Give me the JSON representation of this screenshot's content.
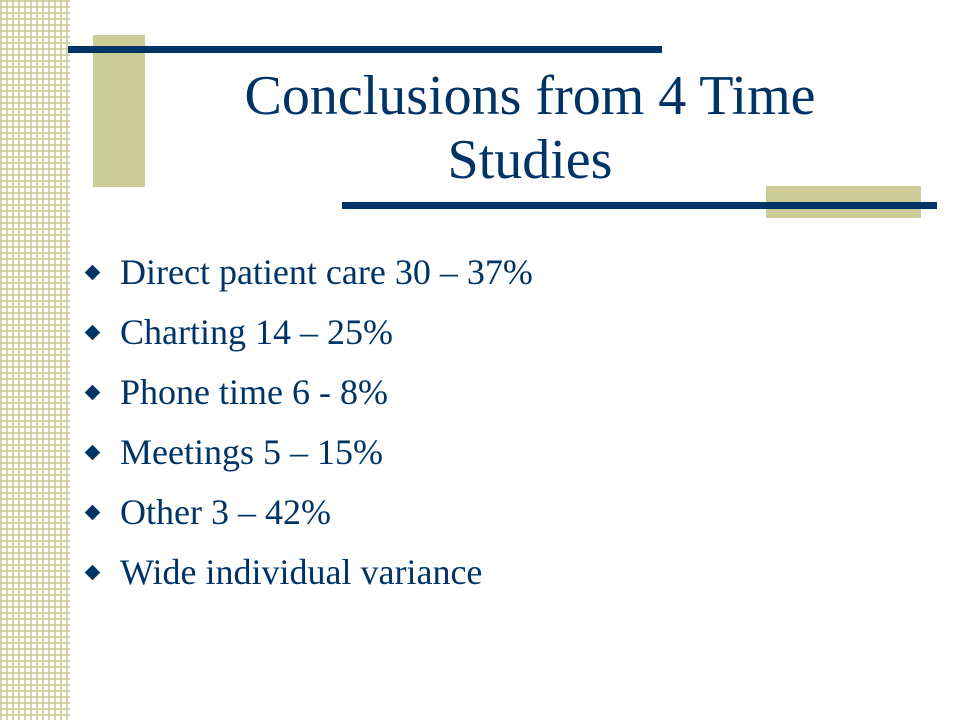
{
  "slide": {
    "title": "Conclusions from 4 Time Studies",
    "bullets": [
      "Direct patient care 30 – 37%",
      "Charting 14 – 25%",
      "Phone time 6 - 8%",
      "Meetings 5 – 15%",
      "Other 3 – 42%",
      "Wide individual variance"
    ],
    "bullet_icon": "diamond-icon"
  },
  "colors": {
    "text": "#003366",
    "accent_rule": "#003366",
    "accent_block": "#cccc99",
    "background": "#ffffff"
  }
}
